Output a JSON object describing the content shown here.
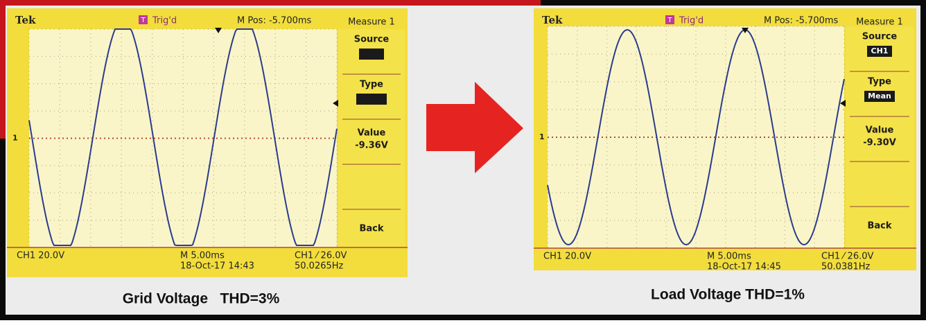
{
  "left_scope": {
    "brand": "Tek",
    "trigger_icon": "T",
    "trigger_status": "Trig'd",
    "m_pos": "M Pos: -5.700ms",
    "channel_marker": "1",
    "menu": {
      "title": "Measure 1",
      "source_label": "Source",
      "type_label": "Type",
      "value_label": "Value",
      "value": "-9.36V",
      "back": "Back"
    },
    "bottom": {
      "ch_scale": "CH1  20.0V",
      "timebase": "M 5.00ms",
      "datetime": "18-Oct-17 14:43",
      "trigger": "CH1 ⁄ 26.0V",
      "frequency": "50.0265Hz"
    },
    "caption": "Grid Voltage   THD=3%"
  },
  "right_scope": {
    "brand": "Tek",
    "trigger_icon": "T",
    "trigger_status": "Trig'd",
    "m_pos": "M Pos: -5.700ms",
    "channel_marker": "1",
    "menu": {
      "title": "Measure 1",
      "source_label": "Source",
      "source_value": "CH1",
      "type_label": "Type",
      "type_value": "Mean",
      "value_label": "Value",
      "value": "-9.30V",
      "back": "Back"
    },
    "bottom": {
      "ch_scale": "CH1  20.0V",
      "timebase": "M 5.00ms",
      "datetime": "18-Oct-17 14:45",
      "trigger": "CH1 ⁄ 26.0V",
      "frequency": "50.0381Hz"
    },
    "caption": "Load Voltage THD=1%"
  }
}
